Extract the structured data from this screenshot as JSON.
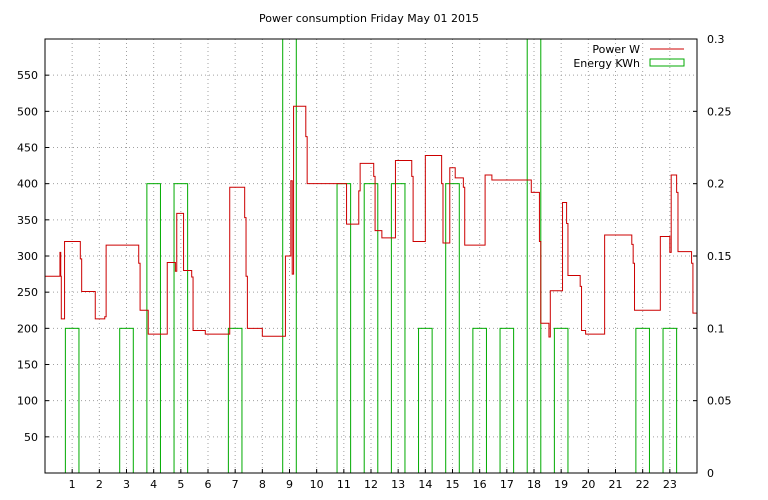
{
  "chart_data": {
    "type": "line",
    "title": "Power consumption Friday May 01 2015",
    "grid": true,
    "legend_position": "top-right",
    "xlim": [
      0,
      24
    ],
    "ylim": [
      0,
      600
    ],
    "y2lim": [
      0,
      0.3
    ],
    "x_ticks": [
      "1",
      "2",
      "3",
      "4",
      "5",
      "6",
      "7",
      "8",
      "9",
      "10",
      "11",
      "12",
      "13",
      "14",
      "15",
      "16",
      "17",
      "18",
      "19",
      "20",
      "21",
      "22",
      "23"
    ],
    "y_ticks": [
      "50",
      "100",
      "150",
      "200",
      "250",
      "300",
      "350",
      "400",
      "450",
      "500",
      "550"
    ],
    "y2_ticks": [
      "0",
      "0.05",
      "0.1",
      "0.15",
      "0.2",
      "0.25",
      "0.3"
    ],
    "series": [
      {
        "name": "Power W",
        "color": "#cc0000",
        "axis": "y1",
        "type": "step",
        "points": [
          [
            0.0,
            272
          ],
          [
            0.5,
            272
          ],
          [
            0.55,
            305
          ],
          [
            0.58,
            272
          ],
          [
            0.6,
            213
          ],
          [
            0.7,
            213
          ],
          [
            0.72,
            320
          ],
          [
            1.25,
            320
          ],
          [
            1.3,
            296
          ],
          [
            1.35,
            251
          ],
          [
            1.8,
            251
          ],
          [
            1.85,
            213
          ],
          [
            2.15,
            213
          ],
          [
            2.2,
            216
          ],
          [
            2.25,
            315
          ],
          [
            3.4,
            315
          ],
          [
            3.45,
            290
          ],
          [
            3.5,
            225
          ],
          [
            3.75,
            225
          ],
          [
            3.8,
            192
          ],
          [
            4.45,
            192
          ],
          [
            4.5,
            291
          ],
          [
            4.75,
            291
          ],
          [
            4.8,
            279
          ],
          [
            4.85,
            359
          ],
          [
            5.05,
            359
          ],
          [
            5.1,
            280
          ],
          [
            5.35,
            280
          ],
          [
            5.4,
            271
          ],
          [
            5.45,
            197
          ],
          [
            5.85,
            197
          ],
          [
            5.9,
            192
          ],
          [
            6.75,
            192
          ],
          [
            6.8,
            395
          ],
          [
            7.3,
            395
          ],
          [
            7.35,
            353
          ],
          [
            7.4,
            272
          ],
          [
            7.45,
            200
          ],
          [
            7.95,
            200
          ],
          [
            8.0,
            189
          ],
          [
            8.8,
            189
          ],
          [
            8.85,
            300
          ],
          [
            9.0,
            300
          ],
          [
            9.05,
            404
          ],
          [
            9.1,
            275
          ],
          [
            9.15,
            507
          ],
          [
            9.55,
            507
          ],
          [
            9.6,
            465
          ],
          [
            9.65,
            400
          ],
          [
            11.05,
            400
          ],
          [
            11.1,
            344
          ],
          [
            11.5,
            344
          ],
          [
            11.55,
            390
          ],
          [
            11.6,
            428
          ],
          [
            12.05,
            428
          ],
          [
            12.1,
            410
          ],
          [
            12.15,
            335
          ],
          [
            12.35,
            335
          ],
          [
            12.4,
            325
          ],
          [
            12.85,
            325
          ],
          [
            12.9,
            432
          ],
          [
            13.45,
            432
          ],
          [
            13.5,
            410
          ],
          [
            13.55,
            320
          ],
          [
            13.95,
            320
          ],
          [
            14.0,
            439
          ],
          [
            14.55,
            439
          ],
          [
            14.6,
            400
          ],
          [
            14.65,
            318
          ],
          [
            14.85,
            318
          ],
          [
            14.9,
            422
          ],
          [
            15.05,
            422
          ],
          [
            15.1,
            408
          ],
          [
            15.35,
            408
          ],
          [
            15.4,
            395
          ],
          [
            15.45,
            315
          ],
          [
            16.15,
            315
          ],
          [
            16.2,
            412
          ],
          [
            16.4,
            412
          ],
          [
            16.45,
            405
          ],
          [
            17.85,
            405
          ],
          [
            17.9,
            388
          ],
          [
            18.15,
            388
          ],
          [
            18.2,
            320
          ],
          [
            18.25,
            207
          ],
          [
            18.5,
            207
          ],
          [
            18.55,
            188
          ],
          [
            18.6,
            252
          ],
          [
            19.0,
            252
          ],
          [
            19.05,
            374
          ],
          [
            19.15,
            374
          ],
          [
            19.2,
            345
          ],
          [
            19.25,
            273
          ],
          [
            19.65,
            273
          ],
          [
            19.7,
            258
          ],
          [
            19.75,
            197
          ],
          [
            19.85,
            197
          ],
          [
            19.9,
            192
          ],
          [
            20.55,
            192
          ],
          [
            20.6,
            329
          ],
          [
            21.55,
            329
          ],
          [
            21.6,
            316
          ],
          [
            21.65,
            290
          ],
          [
            21.7,
            225
          ],
          [
            22.6,
            225
          ],
          [
            22.65,
            327
          ],
          [
            22.95,
            327
          ],
          [
            23.0,
            305
          ],
          [
            23.05,
            412
          ],
          [
            23.2,
            412
          ],
          [
            23.25,
            388
          ],
          [
            23.3,
            306
          ],
          [
            23.75,
            306
          ],
          [
            23.8,
            290
          ],
          [
            23.85,
            221
          ],
          [
            24.0,
            221
          ]
        ]
      },
      {
        "name": "Energy KWh",
        "color": "#00aa00",
        "axis": "y2",
        "type": "bar",
        "bars": [
          [
            1,
            0.1
          ],
          [
            3,
            0.1
          ],
          [
            4,
            0.2
          ],
          [
            5,
            0.2
          ],
          [
            7,
            0.1
          ],
          [
            9,
            0.3
          ],
          [
            11,
            0.2
          ],
          [
            12,
            0.2
          ],
          [
            13,
            0.2
          ],
          [
            14,
            0.1
          ],
          [
            15,
            0.2
          ],
          [
            16,
            0.1
          ],
          [
            17,
            0.1
          ],
          [
            18,
            0.3
          ],
          [
            19,
            0.1
          ],
          [
            22,
            0.1
          ],
          [
            23,
            0.1
          ]
        ]
      }
    ]
  }
}
